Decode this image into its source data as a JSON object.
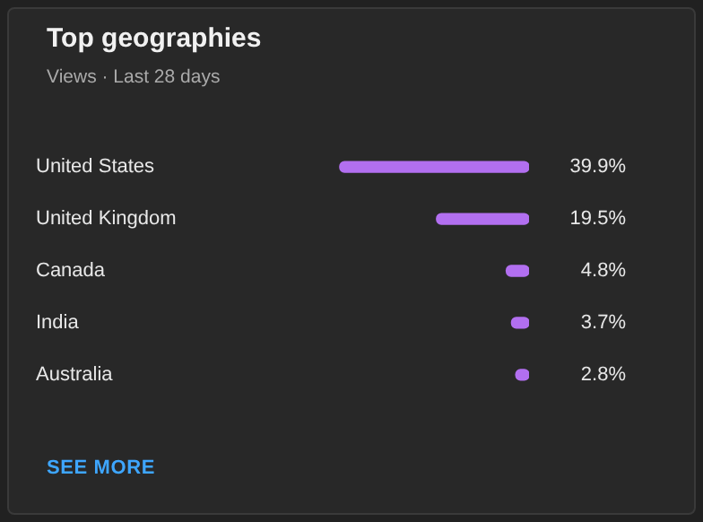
{
  "chart_data": {
    "type": "bar",
    "orientation": "horizontal",
    "title": "Top geographies",
    "subtitle": "Views · Last 28 days",
    "categories": [
      "United States",
      "United Kingdom",
      "Canada",
      "India",
      "Australia"
    ],
    "values": [
      39.9,
      19.5,
      4.8,
      3.7,
      2.8
    ],
    "value_labels": [
      "39.9%",
      "19.5%",
      "4.8%",
      "3.7%",
      "2.8%"
    ],
    "color": "#b26ff0",
    "legend": false,
    "tick_labels": "y",
    "annotations": [
      "SEE MORE"
    ]
  }
}
